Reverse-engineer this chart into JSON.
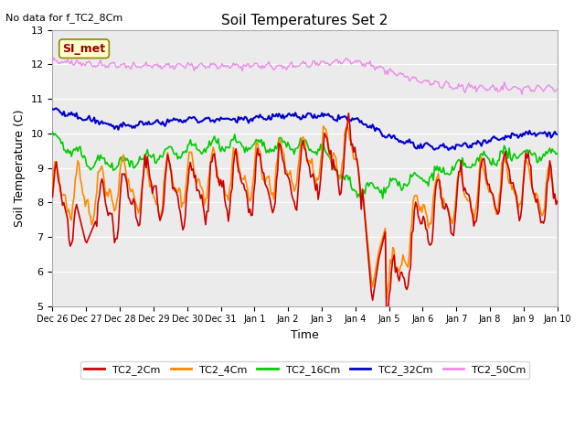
{
  "title": "Soil Temperatures Set 2",
  "subtitle": "No data for f_TC2_8Cm",
  "xlabel": "Time",
  "ylabel": "Soil Temperature (C)",
  "ylim": [
    5.0,
    13.0
  ],
  "yticks": [
    5.0,
    6.0,
    7.0,
    8.0,
    9.0,
    10.0,
    11.0,
    12.0,
    13.0
  ],
  "x_labels": [
    "Dec 26",
    "Dec 27",
    "Dec 28",
    "Dec 29",
    "Dec 30",
    "Dec 31",
    "Jan 1",
    "Jan 2",
    "Jan 3",
    "Jan 4",
    "Jan 5",
    "Jan 6",
    "Jan 7",
    "Jan 8",
    "Jan 9",
    "Jan 10"
  ],
  "series_colors": {
    "TC2_2Cm": "#cc0000",
    "TC2_4Cm": "#ff8800",
    "TC2_16Cm": "#00cc00",
    "TC2_32Cm": "#0000cc",
    "TC2_50Cm": "#ee88ee"
  },
  "plot_bg_color": "#ebebeb",
  "annotation_box_color": "#ffffcc",
  "annotation_text": "SI_met",
  "annotation_text_color": "#990000"
}
